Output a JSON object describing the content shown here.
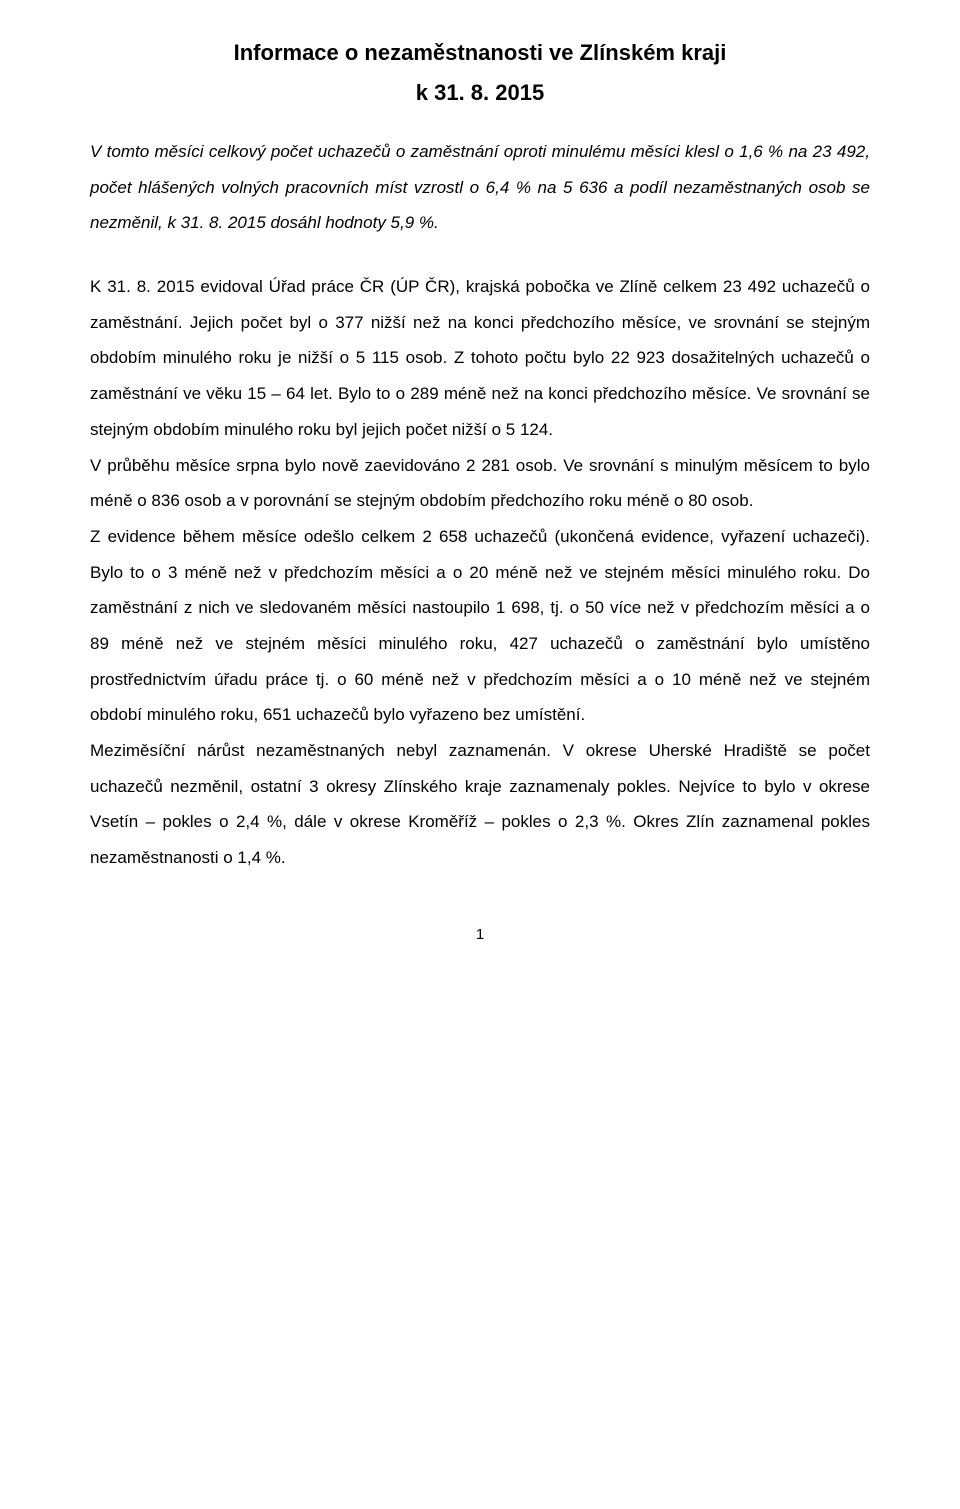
{
  "title": "Informace o nezaměstnanosti ve Zlínském kraji",
  "subtitle": "k 31. 8. 2015",
  "intro": "V tomto měsíci celkový počet uchazečů o zaměstnání oproti minulému měsíci klesl o 1,6 % na 23 492, počet hlášených volných pracovních míst vzrostl o 6,4 % na 5 636 a podíl nezaměstnaných osob se nezměnil, k 31. 8. 2015 dosáhl hodnoty 5,9 %.",
  "p1": "K 31. 8. 2015 evidoval Úřad práce ČR (ÚP ČR), krajská pobočka ve Zlíně celkem 23 492 uchazečů o zaměstnání. Jejich počet byl o 377 nižší než na konci předchozího měsíce, ve srovnání se stejným obdobím minulého roku je nižší o 5 115 osob. Z tohoto počtu bylo 22 923 dosažitelných uchazečů o zaměstnání ve věku 15 – 64 let. Bylo to o 289 méně než na konci předchozího měsíce. Ve srovnání se stejným obdobím minulého roku byl jejich počet nižší o 5 124.",
  "p2": "V průběhu měsíce srpna bylo nově zaevidováno 2 281 osob. Ve srovnání s minulým měsícem to bylo méně o 836 osob a v porovnání se stejným obdobím předchozího roku méně o 80 osob.",
  "p3": "Z evidence během měsíce odešlo celkem 2 658 uchazečů (ukončená evidence, vyřazení uchazeči). Bylo to o 3 méně než v předchozím měsíci a o 20 méně než ve stejném měsíci minulého roku. Do zaměstnání z nich ve sledovaném měsíci nastoupilo 1 698, tj. o 50 více než v předchozím měsíci a o 89 méně než ve stejném měsíci minulého roku, 427 uchazečů o zaměstnání bylo umístěno prostřednictvím úřadu práce tj. o 60 méně než v předchozím měsíci a o 10 méně než ve stejném období minulého roku, 651 uchazečů bylo vyřazeno bez umístění.",
  "p4": "Meziměsíční nárůst nezaměstnaných nebyl zaznamenán. V okrese Uherské Hradiště se počet uchazečů nezměnil, ostatní 3 okresy Zlínského kraje zaznamenaly pokles. Nejvíce to bylo v okrese Vsetín – pokles o 2,4 %, dále v okrese Kroměříž – pokles o 2,3 %. Okres Zlín zaznamenal pokles nezaměstnanosti o 1,4 %.",
  "page_number": "1"
}
